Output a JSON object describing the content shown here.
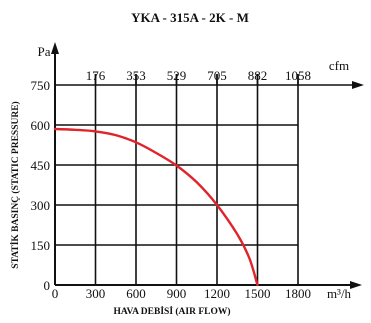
{
  "chart_data": {
    "type": "line",
    "title": "YKA - 315A - 2K - M",
    "xlabel": "HAVA DEBİSİ (AIR FLOW)",
    "ylabel": "STATİK BASINÇ (STATIC PRESSURE)",
    "x_unit": "m³/h",
    "y_unit": "Pa",
    "secondary_x_unit": "cfm",
    "xlim": [
      0,
      1800
    ],
    "ylim": [
      0,
      750
    ],
    "x_ticks": [
      0,
      300,
      600,
      900,
      1200,
      1500,
      1800
    ],
    "y_ticks": [
      0,
      150,
      300,
      450,
      600,
      750
    ],
    "secondary_x_ticks": [
      {
        "label": "176",
        "x": 300
      },
      {
        "label": "353",
        "x": 600
      },
      {
        "label": "529",
        "x": 900
      },
      {
        "label": "705",
        "x": 1200
      },
      {
        "label": "882",
        "x": 1500
      },
      {
        "label": "1058",
        "x": 1800
      }
    ],
    "grid": true,
    "series": [
      {
        "color": "#e0242b",
        "x": [
          0,
          150,
          300,
          450,
          600,
          750,
          900,
          1050,
          1200,
          1350,
          1440,
          1500
        ],
        "y": [
          585,
          582,
          576,
          562,
          535,
          495,
          448,
          385,
          300,
          190,
          100,
          0
        ]
      }
    ]
  }
}
